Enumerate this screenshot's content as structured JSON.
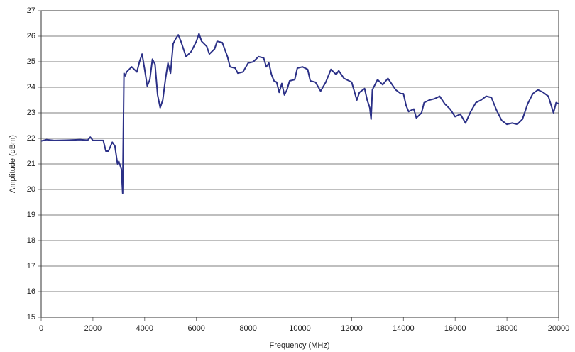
{
  "chart_data": {
    "type": "line",
    "x_label": "Frequency (MHz)",
    "y_label": "Amplitude (dBm)",
    "x": [
      0,
      200,
      500,
      1000,
      1500,
      1800,
      1900,
      2000,
      2400,
      2500,
      2600,
      2750,
      2850,
      2950,
      3000,
      3100,
      3150,
      3200,
      3250,
      3300,
      3500,
      3700,
      3800,
      3900,
      4000,
      4100,
      4200,
      4300,
      4400,
      4500,
      4600,
      4700,
      4800,
      4900,
      5000,
      5100,
      5200,
      5300,
      5400,
      5600,
      5800,
      6000,
      6100,
      6200,
      6400,
      6500,
      6700,
      6800,
      7000,
      7200,
      7300,
      7500,
      7600,
      7800,
      8000,
      8200,
      8400,
      8600,
      8700,
      8800,
      8900,
      9000,
      9100,
      9200,
      9300,
      9400,
      9500,
      9600,
      9800,
      9900,
      10100,
      10300,
      10400,
      10600,
      10800,
      11000,
      11200,
      11400,
      11500,
      11700,
      11900,
      12000,
      12200,
      12300,
      12500,
      12600,
      12700,
      12750,
      12800,
      13000,
      13200,
      13400,
      13500,
      13700,
      13900,
      14000,
      14100,
      14200,
      14400,
      14500,
      14700,
      14800,
      15000,
      15200,
      15400,
      15600,
      15800,
      16000,
      16200,
      16400,
      16600,
      16800,
      17000,
      17200,
      17400,
      17600,
      17800,
      18000,
      18200,
      18400,
      18600,
      18800,
      19000,
      19200,
      19400,
      19600,
      19800,
      19900,
      20000
    ],
    "series": [
      {
        "name": "Amplitude",
        "color": "#2b3087",
        "values": [
          21.9,
          21.95,
          21.92,
          21.93,
          21.95,
          21.93,
          22.05,
          21.92,
          21.92,
          21.5,
          21.5,
          21.85,
          21.7,
          21.0,
          21.1,
          20.8,
          19.85,
          24.55,
          24.45,
          24.6,
          24.8,
          24.6,
          25.0,
          25.3,
          24.7,
          24.05,
          24.3,
          25.1,
          24.9,
          23.7,
          23.2,
          23.5,
          24.3,
          24.95,
          24.55,
          25.7,
          25.9,
          26.05,
          25.8,
          25.2,
          25.4,
          25.8,
          26.1,
          25.8,
          25.6,
          25.3,
          25.5,
          25.8,
          25.75,
          25.2,
          24.8,
          24.75,
          24.55,
          24.6,
          24.95,
          25.0,
          25.2,
          25.15,
          24.8,
          24.95,
          24.5,
          24.25,
          24.2,
          23.8,
          24.15,
          23.7,
          23.9,
          24.25,
          24.3,
          24.75,
          24.8,
          24.7,
          24.25,
          24.2,
          23.85,
          24.2,
          24.7,
          24.5,
          24.65,
          24.35,
          24.25,
          24.2,
          23.5,
          23.8,
          23.95,
          23.5,
          23.2,
          22.75,
          23.9,
          24.3,
          24.1,
          24.35,
          24.2,
          23.9,
          23.75,
          23.75,
          23.3,
          23.05,
          23.15,
          22.8,
          23.0,
          23.4,
          23.5,
          23.55,
          23.65,
          23.35,
          23.15,
          22.85,
          22.95,
          22.6,
          23.05,
          23.4,
          23.5,
          23.65,
          23.6,
          23.1,
          22.7,
          22.55,
          22.6,
          22.55,
          22.75,
          23.35,
          23.75,
          23.9,
          23.8,
          23.65,
          23.0,
          23.4,
          23.35
        ]
      }
    ],
    "xlim": [
      0,
      20000
    ],
    "xticks": [
      0,
      2000,
      4000,
      6000,
      8000,
      10000,
      12000,
      14000,
      16000,
      18000,
      20000
    ],
    "ylim": [
      15,
      27
    ],
    "yticks": [
      15,
      16,
      17,
      18,
      19,
      20,
      21,
      22,
      23,
      24,
      25,
      26,
      27
    ],
    "grid": true
  }
}
